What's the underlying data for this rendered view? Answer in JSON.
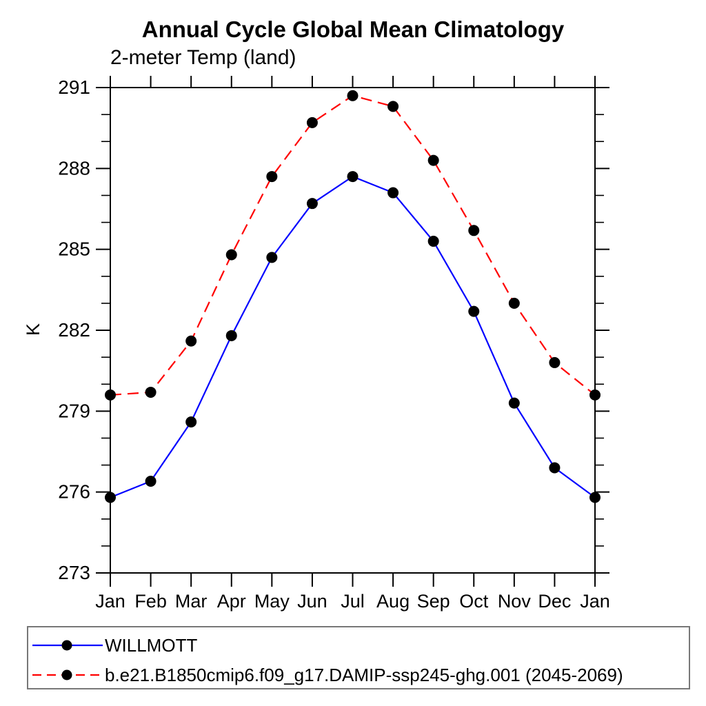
{
  "title": "Annual Cycle Global Mean Climatology",
  "chart_data": {
    "type": "line",
    "title": "Annual Cycle Global Mean Climatology",
    "subtitle": "2-meter Temp (land)",
    "xlabel": "",
    "ylabel": "K",
    "ylim": [
      273,
      291
    ],
    "yticks_major": [
      273,
      276,
      279,
      282,
      285,
      288,
      291
    ],
    "ytick_minor_step": 1,
    "grid": false,
    "frame": "box-with-outward-ticks",
    "legend_position": "bottom-box",
    "categories": [
      "Jan",
      "Feb",
      "Mar",
      "Apr",
      "May",
      "Jun",
      "Jul",
      "Aug",
      "Sep",
      "Oct",
      "Nov",
      "Dec",
      "Jan"
    ],
    "series": [
      {
        "name": "WILLMOTT",
        "color": "#0000ff",
        "line_style": "solid",
        "marker": "filled-circle",
        "marker_color": "#000000",
        "values": [
          275.8,
          276.4,
          278.6,
          281.8,
          284.7,
          286.7,
          287.7,
          287.1,
          285.3,
          282.7,
          279.3,
          276.9,
          275.8
        ]
      },
      {
        "name": "b.e21.B1850cmip6.f09_g17.DAMIP-ssp245-ghg.001 (2045-2069)",
        "color": "#ff0000",
        "line_style": "dashed",
        "marker": "filled-circle",
        "marker_color": "#000000",
        "values": [
          279.6,
          279.7,
          281.6,
          284.8,
          287.7,
          289.7,
          290.7,
          290.3,
          288.3,
          285.7,
          283.0,
          280.8,
          279.6
        ]
      }
    ]
  },
  "colors": {
    "axis": "#000000",
    "background": "#ffffff",
    "legend_border": "#777777",
    "series_blue": "#0000ff",
    "series_red": "#ff0000",
    "marker": "#000000"
  }
}
